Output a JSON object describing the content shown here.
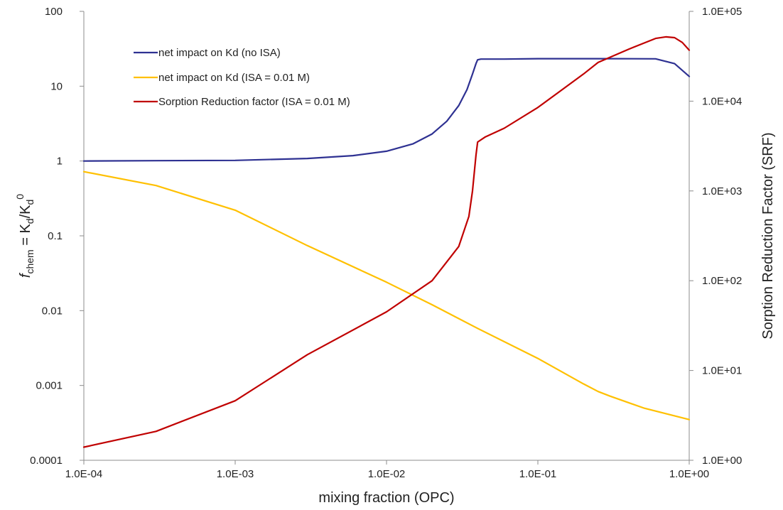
{
  "chart_data": {
    "type": "line",
    "x_scale": "log",
    "y_scale": "log",
    "y2_scale": "log",
    "grid": false,
    "legend_position": "top-left",
    "xlim": [
      0.0001,
      1
    ],
    "ylim": [
      0.0001,
      100
    ],
    "y2lim": [
      1,
      100000
    ],
    "xlabel": "mixing fraction (OPC)",
    "ylabel": {
      "f": "f",
      "chem": "chem",
      "eq": " = K",
      "d1": "d",
      "slash": "/K",
      "d2": "d",
      "zero": "0"
    },
    "y2label": "Sorption Reduction Factor (SRF)",
    "x_ticks": [
      {
        "value": 0.0001,
        "label": "1.0E-04"
      },
      {
        "value": 0.001,
        "label": "1.0E-03"
      },
      {
        "value": 0.01,
        "label": "1.0E-02"
      },
      {
        "value": 0.1,
        "label": "1.0E-01"
      },
      {
        "value": 1,
        "label": "1.0E+00"
      }
    ],
    "y_ticks": [
      {
        "value": 100,
        "label": "100"
      },
      {
        "value": 10,
        "label": "10"
      },
      {
        "value": 1,
        "label": "1"
      },
      {
        "value": 0.1,
        "label": "0.1"
      },
      {
        "value": 0.01,
        "label": "0.01"
      },
      {
        "value": 0.001,
        "label": "0.001"
      },
      {
        "value": 0.0001,
        "label": "0.0001"
      }
    ],
    "y2_ticks": [
      {
        "value": 100000,
        "label": "1.0E+05"
      },
      {
        "value": 10000,
        "label": "1.0E+04"
      },
      {
        "value": 1000,
        "label": "1.0E+03"
      },
      {
        "value": 100,
        "label": "1.0E+02"
      },
      {
        "value": 10,
        "label": "1.0E+01"
      },
      {
        "value": 1,
        "label": "1.0E+00"
      }
    ],
    "series": [
      {
        "name": "net impact on Kd (no ISA)",
        "color": "#2e3192",
        "axis": "left",
        "x": [
          0.0001,
          0.0003,
          0.001,
          0.003,
          0.006,
          0.01,
          0.015,
          0.02,
          0.025,
          0.03,
          0.034,
          0.037,
          0.039,
          0.04,
          0.042,
          0.06,
          0.1,
          0.3,
          0.6,
          0.8,
          1.0
        ],
        "y": [
          1.0,
          1.01,
          1.02,
          1.08,
          1.18,
          1.35,
          1.7,
          2.3,
          3.4,
          5.5,
          9,
          14.5,
          20,
          22.5,
          23,
          23,
          23.3,
          23.3,
          23.2,
          20,
          13.5
        ]
      },
      {
        "name": "net impact on Kd (ISA = 0.01 M)",
        "color": "#ffc000",
        "axis": "left",
        "x": [
          0.0001,
          0.0003,
          0.001,
          0.003,
          0.01,
          0.02,
          0.04,
          0.1,
          0.2,
          0.25,
          0.3,
          0.5,
          1.0
        ],
        "y": [
          0.72,
          0.47,
          0.22,
          0.074,
          0.024,
          0.012,
          0.0058,
          0.0023,
          0.00105,
          0.00083,
          0.00072,
          0.0005,
          0.00035
        ]
      },
      {
        "name": "Sorption Reduction factor (ISA = 0.01 M)",
        "color": "#c00000",
        "axis": "right",
        "x": [
          0.0001,
          0.0003,
          0.001,
          0.003,
          0.01,
          0.02,
          0.03,
          0.035,
          0.037,
          0.039,
          0.04,
          0.045,
          0.06,
          0.1,
          0.2,
          0.25,
          0.4,
          0.6,
          0.7,
          0.8,
          0.9,
          1.0
        ],
        "y": [
          1.4,
          2.1,
          4.6,
          15,
          45,
          100,
          240,
          520,
          1000,
          2500,
          3500,
          4000,
          5000,
          8500,
          20000,
          27000,
          38000,
          50000,
          52000,
          51000,
          45000,
          37000
        ]
      }
    ]
  }
}
